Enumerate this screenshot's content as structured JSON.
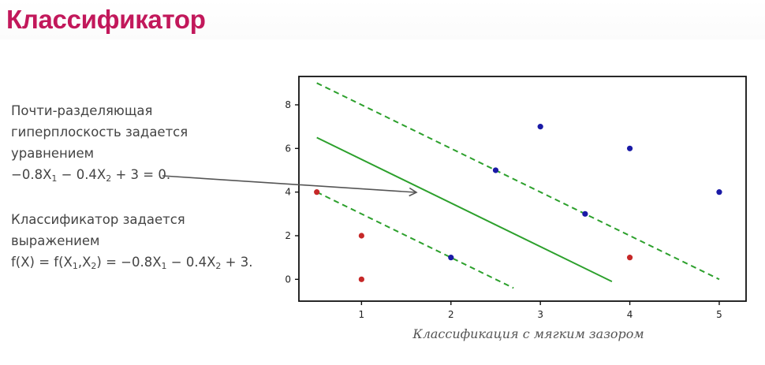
{
  "title": "Классификатор",
  "text": {
    "line1": "Почти-разделяющая",
    "line2": "гиперплоскость задается",
    "line3": "уравнением",
    "eq1": {
      "a": "−0.8X",
      "s1": "1",
      "b": " − 0.4X",
      "s2": "2",
      "c": " + 3 = 0."
    },
    "line5": "Классификатор задается",
    "line6": "выражением",
    "eq2": {
      "a": "f(X) = f(X",
      "s1": "1",
      "b": ",X",
      "s2": "2",
      "c": ") = −0.8X",
      "s3": "1",
      "d": " − 0.4X",
      "s4": "2",
      "e": " + 3."
    }
  },
  "chart_data": {
    "type": "scatter",
    "xlabel": "Классификация с мягким зазором",
    "ylabel": "",
    "xlim": [
      0.3,
      5.3
    ],
    "ylim": [
      -1.0,
      9.3
    ],
    "xticks": [
      1,
      2,
      3,
      4,
      5
    ],
    "yticks": [
      0,
      2,
      4,
      6,
      8
    ],
    "series": [
      {
        "name": "blue",
        "color": "#1a1aa6",
        "points": [
          [
            2,
            1
          ],
          [
            2.5,
            5
          ],
          [
            3,
            7
          ],
          [
            3.5,
            3
          ],
          [
            4,
            6
          ],
          [
            5,
            4
          ]
        ]
      },
      {
        "name": "red",
        "color": "#c62828",
        "points": [
          [
            0.5,
            4
          ],
          [
            1,
            2
          ],
          [
            1,
            0
          ],
          [
            4,
            1
          ]
        ]
      }
    ],
    "lines": [
      {
        "name": "hyperplane",
        "style": "solid",
        "color": "#2ca02c",
        "from": [
          0.5,
          6.5
        ],
        "to": [
          3.8,
          -0.1
        ]
      },
      {
        "name": "margin-upper",
        "style": "dashed",
        "color": "#2ca02c",
        "from": [
          0.5,
          9.0
        ],
        "to": [
          5.0,
          0.0
        ]
      },
      {
        "name": "margin-lower",
        "style": "dashed",
        "color": "#2ca02c",
        "from": [
          0.5,
          4.0
        ],
        "to": [
          2.7,
          -0.4
        ]
      }
    ]
  }
}
